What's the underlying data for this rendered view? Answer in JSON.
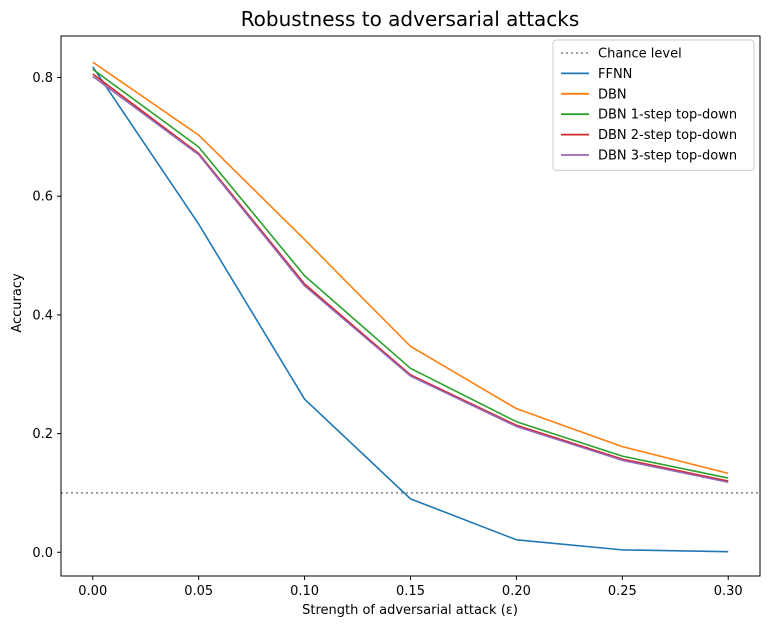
{
  "chart_data": {
    "type": "line",
    "title": "Robustness to adversarial attacks",
    "xlabel": "Strength of adversarial attack (ε)",
    "ylabel": "Accuracy",
    "x": [
      0.0,
      0.05,
      0.1,
      0.15,
      0.2,
      0.25,
      0.3
    ],
    "xlim": [
      -0.015,
      0.315
    ],
    "ylim": [
      -0.04,
      0.87
    ],
    "xticks": [
      0.0,
      0.05,
      0.1,
      0.15,
      0.2,
      0.25,
      0.3
    ],
    "xtick_labels": [
      "0.00",
      "0.05",
      "0.10",
      "0.15",
      "0.20",
      "0.25",
      "0.30"
    ],
    "yticks": [
      0.0,
      0.2,
      0.4,
      0.6,
      0.8
    ],
    "ytick_labels": [
      "0.0",
      "0.2",
      "0.4",
      "0.6",
      "0.8"
    ],
    "grid": false,
    "legend_position": "top-right",
    "chance_level": {
      "name": "Chance level",
      "value": 0.1,
      "color": "#808080",
      "style": "dotted"
    },
    "series": [
      {
        "name": "FFNN",
        "color": "#1f77b4",
        "values": [
          0.818,
          0.553,
          0.258,
          0.09,
          0.021,
          0.004,
          0.001
        ]
      },
      {
        "name": "DBN",
        "color": "#ff7f0e",
        "values": [
          0.826,
          0.703,
          0.527,
          0.347,
          0.242,
          0.178,
          0.133
        ]
      },
      {
        "name": "DBN 1-step top-down",
        "color": "#2ca02c",
        "values": [
          0.814,
          0.683,
          0.466,
          0.31,
          0.22,
          0.162,
          0.125
        ]
      },
      {
        "name": "DBN 2-step top-down",
        "color": "#d62728",
        "values": [
          0.806,
          0.672,
          0.452,
          0.299,
          0.214,
          0.157,
          0.12
        ]
      },
      {
        "name": "DBN 3-step top-down",
        "color": "#9467bd",
        "values": [
          0.802,
          0.67,
          0.449,
          0.297,
          0.212,
          0.155,
          0.118
        ]
      }
    ]
  }
}
